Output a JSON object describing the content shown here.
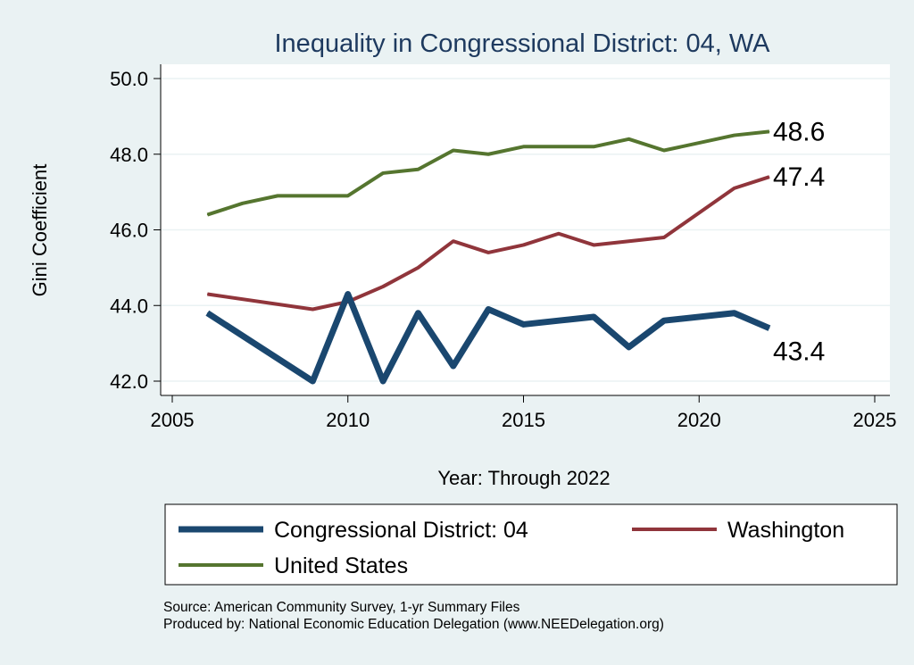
{
  "chart_data": {
    "type": "line",
    "title": "Inequality in Congressional District:  04, WA",
    "xlabel": "Year: Through 2022",
    "ylabel": "Gini Coefficient",
    "xlim": [
      2004,
      2026
    ],
    "ylim": [
      41.6,
      50.4
    ],
    "xticks": [
      2005,
      2010,
      2015,
      2020,
      2025
    ],
    "yticks": [
      "42.0",
      "44.0",
      "46.0",
      "48.0",
      "50.0"
    ],
    "grid": true,
    "legend_position": "bottom",
    "series": [
      {
        "name": "Congressional District:  04",
        "color": "#1a476f",
        "width": 7,
        "x": [
          2006,
          2009,
          2010,
          2011,
          2012,
          2013,
          2014,
          2015,
          2016,
          2017,
          2018,
          2019,
          2021,
          2022
        ],
        "y": [
          43.8,
          42.0,
          44.3,
          42.0,
          43.8,
          42.4,
          43.9,
          43.5,
          43.6,
          43.7,
          42.9,
          43.6,
          43.8,
          43.4
        ],
        "end_label": "43.4"
      },
      {
        "name": "Washington",
        "color": "#90353b",
        "width": 4,
        "x": [
          2006,
          2009,
          2010,
          2011,
          2012,
          2013,
          2014,
          2015,
          2016,
          2017,
          2018,
          2019,
          2021,
          2022
        ],
        "y": [
          44.3,
          43.9,
          44.1,
          44.5,
          45.0,
          45.7,
          45.4,
          45.6,
          45.9,
          45.6,
          45.7,
          45.8,
          47.1,
          47.4
        ],
        "end_label": "47.4"
      },
      {
        "name": "United States",
        "color": "#55752f",
        "width": 4,
        "x": [
          2006,
          2007,
          2008,
          2009,
          2010,
          2011,
          2012,
          2013,
          2014,
          2015,
          2016,
          2017,
          2018,
          2019,
          2021,
          2022
        ],
        "y": [
          46.4,
          46.7,
          46.9,
          46.9,
          46.9,
          47.5,
          47.6,
          48.1,
          48.0,
          48.2,
          48.2,
          48.2,
          48.4,
          48.1,
          48.5,
          48.6
        ],
        "end_label": "48.6"
      }
    ]
  },
  "notes": {
    "source": "Source: American Community Survey, 1-yr Summary Files",
    "produced": "Produced by: National Economic Education Delegation (www.NEEDelegation.org)"
  }
}
